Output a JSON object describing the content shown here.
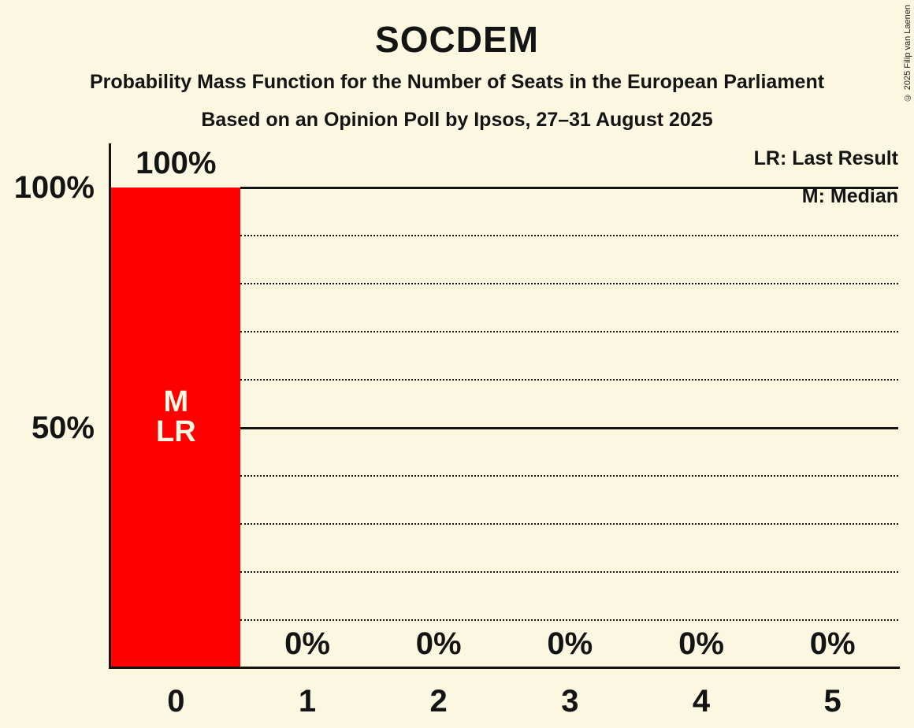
{
  "chart_data": {
    "type": "bar",
    "title": "SOCDEM",
    "subtitle": "Probability Mass Function for the Number of Seats in the European Parliament",
    "poll_line": "Based on an Opinion Poll by Ipsos, 27–31 August 2025",
    "copyright": "© 2025 Filip van Laenen",
    "legend": [
      {
        "label": "LR: Last Result"
      },
      {
        "label": "M: Median"
      }
    ],
    "xlabel": "",
    "ylabel": "",
    "categories": [
      "0",
      "1",
      "2",
      "3",
      "4",
      "5"
    ],
    "values": [
      100,
      0,
      0,
      0,
      0,
      0
    ],
    "bar_value_labels": [
      "100%",
      "0%",
      "0%",
      "0%",
      "0%",
      "0%"
    ],
    "bar_annotations": [
      {
        "index": 0,
        "lines": [
          "M",
          "LR"
        ]
      }
    ],
    "y_axis": {
      "range": [
        0,
        100
      ],
      "ticks": [
        {
          "value": 100,
          "label": "100%"
        },
        {
          "value": 50,
          "label": "50%"
        }
      ],
      "solid_gridlines": [
        100,
        50
      ],
      "dotted_gridlines": [
        90,
        80,
        70,
        60,
        40,
        30,
        20,
        10
      ]
    },
    "colors": {
      "background": "#FBF7E1",
      "bar": "#FF0000",
      "bar_text": "#FBF7E1",
      "text": "#141414"
    }
  }
}
